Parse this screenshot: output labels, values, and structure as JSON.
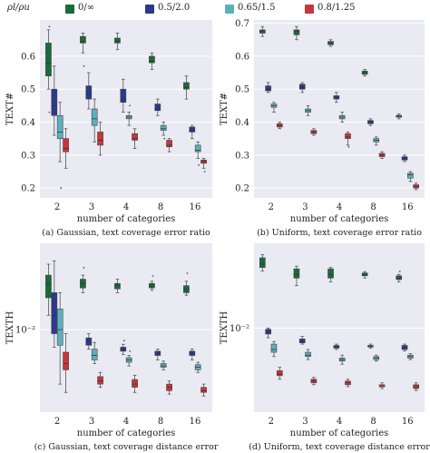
{
  "legend": {
    "title": "ρl/ρu",
    "items": [
      {
        "label": "0/∞",
        "color": "#1a6b3a"
      },
      {
        "label": "0.5/2.0",
        "color": "#2b3a8c"
      },
      {
        "label": "0.65/1.5",
        "color": "#5bb0bd"
      },
      {
        "label": "0.8/1.25",
        "color": "#c8353a"
      }
    ]
  },
  "chart_data": [
    {
      "type": "box",
      "caption": "(a) Gaussian, text coverage error ratio",
      "xlabel": "number of categories",
      "ylabel": "TEXT#",
      "categories": [
        "2",
        "3",
        "4",
        "8",
        "16"
      ],
      "yscale": "linear",
      "ylim": [
        0.17,
        0.71
      ],
      "yticks": [
        "0.2",
        "0.3",
        "0.4",
        "0.5",
        "0.6"
      ],
      "ytick_values": [
        0.2,
        0.3,
        0.4,
        0.5,
        0.6
      ],
      "series": [
        {
          "name": "0/∞",
          "boxes": [
            {
              "min": 0.5,
              "q1": 0.54,
              "med": 0.58,
              "q3": 0.64,
              "max": 0.68,
              "outliers": [
                0.69,
                0.43
              ]
            },
            {
              "min": 0.61,
              "q1": 0.64,
              "med": 0.645,
              "q3": 0.66,
              "max": 0.67,
              "outliers": [
                0.57
              ]
            },
            {
              "min": 0.62,
              "q1": 0.64,
              "med": 0.645,
              "q3": 0.655,
              "max": 0.67,
              "outliers": []
            },
            {
              "min": 0.56,
              "q1": 0.58,
              "med": 0.585,
              "q3": 0.6,
              "max": 0.61,
              "outliers": []
            },
            {
              "min": 0.47,
              "q1": 0.5,
              "med": 0.505,
              "q3": 0.52,
              "max": 0.54,
              "outliers": []
            }
          ]
        },
        {
          "name": "0.5/2.0",
          "boxes": [
            {
              "min": 0.36,
              "q1": 0.42,
              "med": 0.45,
              "q3": 0.5,
              "max": 0.57,
              "outliers": []
            },
            {
              "min": 0.44,
              "q1": 0.47,
              "med": 0.485,
              "q3": 0.51,
              "max": 0.55,
              "outliers": []
            },
            {
              "min": 0.43,
              "q1": 0.46,
              "med": 0.47,
              "q3": 0.5,
              "max": 0.53,
              "outliers": []
            },
            {
              "min": 0.42,
              "q1": 0.435,
              "med": 0.44,
              "q3": 0.455,
              "max": 0.47,
              "outliers": []
            },
            {
              "min": 0.35,
              "q1": 0.37,
              "med": 0.375,
              "q3": 0.385,
              "max": 0.39,
              "outliers": []
            }
          ]
        },
        {
          "name": "0.65/1.5",
          "boxes": [
            {
              "min": 0.28,
              "q1": 0.35,
              "med": 0.37,
              "q3": 0.42,
              "max": 0.46,
              "outliers": [
                0.2
              ]
            },
            {
              "min": 0.34,
              "q1": 0.39,
              "med": 0.41,
              "q3": 0.44,
              "max": 0.47,
              "outliers": []
            },
            {
              "min": 0.39,
              "q1": 0.41,
              "med": 0.415,
              "q3": 0.42,
              "max": 0.43,
              "outliers": [
                0.45
              ]
            },
            {
              "min": 0.36,
              "q1": 0.375,
              "med": 0.38,
              "q3": 0.39,
              "max": 0.4,
              "outliers": [
                0.35
              ]
            },
            {
              "min": 0.29,
              "q1": 0.31,
              "med": 0.315,
              "q3": 0.33,
              "max": 0.34,
              "outliers": [
                0.27
              ]
            }
          ]
        },
        {
          "name": "0.8/1.25",
          "boxes": [
            {
              "min": 0.26,
              "q1": 0.31,
              "med": 0.32,
              "q3": 0.35,
              "max": 0.38,
              "outliers": []
            },
            {
              "min": 0.3,
              "q1": 0.33,
              "med": 0.345,
              "q3": 0.37,
              "max": 0.4,
              "outliers": []
            },
            {
              "min": 0.32,
              "q1": 0.345,
              "med": 0.35,
              "q3": 0.365,
              "max": 0.38,
              "outliers": []
            },
            {
              "min": 0.31,
              "q1": 0.325,
              "med": 0.33,
              "q3": 0.345,
              "max": 0.35,
              "outliers": []
            },
            {
              "min": 0.26,
              "q1": 0.275,
              "med": 0.28,
              "q3": 0.285,
              "max": 0.29,
              "outliers": [
                0.25
              ]
            }
          ]
        }
      ]
    },
    {
      "type": "box",
      "caption": "(b) Uniform, text coverage error ratio",
      "xlabel": "number of categories",
      "ylabel": "TEXT#",
      "categories": [
        "2",
        "3",
        "4",
        "8",
        "16"
      ],
      "yscale": "linear",
      "ylim": [
        0.17,
        0.71
      ],
      "yticks": [
        "0.2",
        "0.3",
        "0.4",
        "0.5",
        "0.6",
        "0.7"
      ],
      "ytick_values": [
        0.2,
        0.3,
        0.4,
        0.5,
        0.6,
        0.7
      ],
      "series": [
        {
          "name": "0/∞",
          "boxes": [
            {
              "min": 0.66,
              "q1": 0.67,
              "med": 0.675,
              "q3": 0.68,
              "max": 0.69,
              "outliers": []
            },
            {
              "min": 0.65,
              "q1": 0.665,
              "med": 0.675,
              "q3": 0.68,
              "max": 0.69,
              "outliers": []
            },
            {
              "min": 0.63,
              "q1": 0.635,
              "med": 0.64,
              "q3": 0.645,
              "max": 0.65,
              "outliers": []
            },
            {
              "min": 0.54,
              "q1": 0.545,
              "med": 0.55,
              "q3": 0.555,
              "max": 0.56,
              "outliers": []
            },
            {
              "min": 0.41,
              "q1": 0.415,
              "med": 0.42,
              "q3": 0.42,
              "max": 0.425,
              "outliers": []
            }
          ]
        },
        {
          "name": "0.5/2.0",
          "boxes": [
            {
              "min": 0.49,
              "q1": 0.495,
              "med": 0.5,
              "q3": 0.51,
              "max": 0.52,
              "outliers": []
            },
            {
              "min": 0.49,
              "q1": 0.5,
              "med": 0.505,
              "q3": 0.515,
              "max": 0.52,
              "outliers": []
            },
            {
              "min": 0.46,
              "q1": 0.47,
              "med": 0.475,
              "q3": 0.48,
              "max": 0.49,
              "outliers": []
            },
            {
              "min": 0.39,
              "q1": 0.395,
              "med": 0.4,
              "q3": 0.405,
              "max": 0.41,
              "outliers": []
            },
            {
              "min": 0.28,
              "q1": 0.285,
              "med": 0.29,
              "q3": 0.295,
              "max": 0.3,
              "outliers": []
            }
          ]
        },
        {
          "name": "0.65/1.5",
          "boxes": [
            {
              "min": 0.43,
              "q1": 0.445,
              "med": 0.45,
              "q3": 0.455,
              "max": 0.46,
              "outliers": []
            },
            {
              "min": 0.42,
              "q1": 0.43,
              "med": 0.435,
              "q3": 0.44,
              "max": 0.45,
              "outliers": []
            },
            {
              "min": 0.4,
              "q1": 0.41,
              "med": 0.415,
              "q3": 0.42,
              "max": 0.43,
              "outliers": []
            },
            {
              "min": 0.33,
              "q1": 0.34,
              "med": 0.345,
              "q3": 0.35,
              "max": 0.355,
              "outliers": []
            },
            {
              "min": 0.22,
              "q1": 0.23,
              "med": 0.24,
              "q3": 0.245,
              "max": 0.25,
              "outliers": []
            }
          ]
        },
        {
          "name": "0.8/1.25",
          "boxes": [
            {
              "min": 0.38,
              "q1": 0.385,
              "med": 0.39,
              "q3": 0.395,
              "max": 0.4,
              "outliers": []
            },
            {
              "min": 0.36,
              "q1": 0.365,
              "med": 0.37,
              "q3": 0.375,
              "max": 0.38,
              "outliers": []
            },
            {
              "min": 0.33,
              "q1": 0.35,
              "med": 0.355,
              "q3": 0.365,
              "max": 0.37,
              "outliers": [
                0.325
              ]
            },
            {
              "min": 0.29,
              "q1": 0.295,
              "med": 0.3,
              "q3": 0.305,
              "max": 0.31,
              "outliers": []
            },
            {
              "min": 0.195,
              "q1": 0.2,
              "med": 0.205,
              "q3": 0.21,
              "max": 0.215,
              "outliers": []
            }
          ]
        }
      ]
    },
    {
      "type": "box",
      "caption": "(c) Gaussian, text coverage distance error",
      "xlabel": "number of categories",
      "ylabel": "TEXTH",
      "categories": [
        "2",
        "3",
        "4",
        "8",
        "16"
      ],
      "yscale": "log",
      "ylim": [
        0.0035,
        0.03
      ],
      "yticks": [
        "10⁻²"
      ],
      "ytick_values": [
        0.01
      ],
      "series": [
        {
          "name": "0/∞",
          "boxes": [
            {
              "min": 0.012,
              "q1": 0.015,
              "med": 0.018,
              "q3": 0.02,
              "max": 0.023,
              "outliers": []
            },
            {
              "min": 0.016,
              "q1": 0.017,
              "med": 0.018,
              "q3": 0.019,
              "max": 0.02,
              "outliers": [
                0.022
              ]
            },
            {
              "min": 0.016,
              "q1": 0.0168,
              "med": 0.0175,
              "q3": 0.018,
              "max": 0.019,
              "outliers": []
            },
            {
              "min": 0.0165,
              "q1": 0.017,
              "med": 0.0175,
              "q3": 0.018,
              "max": 0.0185,
              "outliers": [
                0.0198
              ]
            },
            {
              "min": 0.0155,
              "q1": 0.016,
              "med": 0.0168,
              "q3": 0.0175,
              "max": 0.0185,
              "outliers": [
                0.0205
              ]
            }
          ]
        },
        {
          "name": "0.5/2.0",
          "boxes": [
            {
              "min": 0.008,
              "q1": 0.0095,
              "med": 0.012,
              "q3": 0.016,
              "max": 0.024,
              "outliers": []
            },
            {
              "min": 0.0078,
              "q1": 0.0082,
              "med": 0.0086,
              "q3": 0.009,
              "max": 0.0095,
              "outliers": []
            },
            {
              "min": 0.0073,
              "q1": 0.0076,
              "med": 0.0078,
              "q3": 0.008,
              "max": 0.0083,
              "outliers": [
                0.0087
              ]
            },
            {
              "min": 0.0068,
              "q1": 0.0072,
              "med": 0.0074,
              "q3": 0.0076,
              "max": 0.0078,
              "outliers": []
            },
            {
              "min": 0.0068,
              "q1": 0.0072,
              "med": 0.0074,
              "q3": 0.0076,
              "max": 0.0078,
              "outliers": []
            }
          ]
        },
        {
          "name": "0.65/1.5",
          "boxes": [
            {
              "min": 0.005,
              "q1": 0.0082,
              "med": 0.01,
              "q3": 0.013,
              "max": 0.016,
              "outliers": []
            },
            {
              "min": 0.0065,
              "q1": 0.0068,
              "med": 0.0072,
              "q3": 0.0078,
              "max": 0.0085,
              "outliers": []
            },
            {
              "min": 0.0063,
              "q1": 0.0066,
              "med": 0.0068,
              "q3": 0.007,
              "max": 0.0072,
              "outliers": [
                0.0076
              ]
            },
            {
              "min": 0.006,
              "q1": 0.0062,
              "med": 0.0063,
              "q3": 0.0065,
              "max": 0.0067,
              "outliers": []
            },
            {
              "min": 0.0058,
              "q1": 0.006,
              "med": 0.0062,
              "q3": 0.0064,
              "max": 0.0066,
              "outliers": []
            }
          ]
        },
        {
          "name": "0.8/1.25",
          "boxes": [
            {
              "min": 0.0045,
              "q1": 0.006,
              "med": 0.0065,
              "q3": 0.0075,
              "max": 0.0095,
              "outliers": []
            },
            {
              "min": 0.0048,
              "q1": 0.005,
              "med": 0.0052,
              "q3": 0.0055,
              "max": 0.0058,
              "outliers": []
            },
            {
              "min": 0.0045,
              "q1": 0.0048,
              "med": 0.005,
              "q3": 0.0053,
              "max": 0.0056,
              "outliers": []
            },
            {
              "min": 0.0044,
              "q1": 0.0046,
              "med": 0.0048,
              "q3": 0.005,
              "max": 0.0052,
              "outliers": []
            },
            {
              "min": 0.0043,
              "q1": 0.0045,
              "med": 0.0046,
              "q3": 0.0048,
              "max": 0.005,
              "outliers": []
            }
          ]
        }
      ]
    },
    {
      "type": "box",
      "caption": "(d) Uniform, text coverage distance error",
      "xlabel": "number of categories",
      "ylabel": "TEXTH",
      "categories": [
        "2",
        "3",
        "4",
        "8",
        "16"
      ],
      "yscale": "log",
      "ylim": [
        0.0048,
        0.021
      ],
      "yticks": [
        "10⁻²"
      ],
      "ytick_values": [
        0.01
      ],
      "series": [
        {
          "name": "0/∞",
          "boxes": [
            {
              "min": 0.0165,
              "q1": 0.017,
              "med": 0.0175,
              "q3": 0.0185,
              "max": 0.019,
              "outliers": []
            },
            {
              "min": 0.0145,
              "q1": 0.0155,
              "med": 0.016,
              "q3": 0.0168,
              "max": 0.0172,
              "outliers": []
            },
            {
              "min": 0.015,
              "q1": 0.0155,
              "med": 0.016,
              "q3": 0.0168,
              "max": 0.017,
              "outliers": []
            },
            {
              "min": 0.0155,
              "q1": 0.0158,
              "med": 0.016,
              "q3": 0.0162,
              "max": 0.0164,
              "outliers": []
            },
            {
              "min": 0.015,
              "q1": 0.0153,
              "med": 0.0155,
              "q3": 0.0158,
              "max": 0.016,
              "outliers": [
                0.0164
              ]
            }
          ]
        },
        {
          "name": "0.5/2.0",
          "boxes": [
            {
              "min": 0.0092,
              "q1": 0.0095,
              "med": 0.0097,
              "q3": 0.0099,
              "max": 0.01,
              "outliers": []
            },
            {
              "min": 0.0087,
              "q1": 0.0088,
              "med": 0.0089,
              "q3": 0.0091,
              "max": 0.0093,
              "outliers": []
            },
            {
              "min": 0.0083,
              "q1": 0.0084,
              "med": 0.0085,
              "q3": 0.0086,
              "max": 0.0087,
              "outliers": []
            },
            {
              "min": 0.0084,
              "q1": 0.0085,
              "med": 0.0085,
              "q3": 0.0086,
              "max": 0.0087,
              "outliers": []
            },
            {
              "min": 0.0082,
              "q1": 0.0083,
              "med": 0.0084,
              "q3": 0.0086,
              "max": 0.0087,
              "outliers": []
            }
          ]
        },
        {
          "name": "0.65/1.5",
          "boxes": [
            {
              "min": 0.0078,
              "q1": 0.0081,
              "med": 0.0083,
              "q3": 0.0087,
              "max": 0.0089,
              "outliers": []
            },
            {
              "min": 0.0076,
              "q1": 0.0078,
              "med": 0.0079,
              "q3": 0.0081,
              "max": 0.0083,
              "outliers": []
            },
            {
              "min": 0.0073,
              "q1": 0.0075,
              "med": 0.0076,
              "q3": 0.0077,
              "max": 0.0079,
              "outliers": []
            },
            {
              "min": 0.0075,
              "q1": 0.0076,
              "med": 0.0077,
              "q3": 0.0078,
              "max": 0.0079,
              "outliers": []
            },
            {
              "min": 0.0076,
              "q1": 0.0077,
              "med": 0.0078,
              "q3": 0.0079,
              "max": 0.008,
              "outliers": []
            }
          ]
        },
        {
          "name": "0.8/1.25",
          "boxes": [
            {
              "min": 0.0064,
              "q1": 0.0066,
              "med": 0.0067,
              "q3": 0.0069,
              "max": 0.0071,
              "outliers": []
            },
            {
              "min": 0.0061,
              "q1": 0.0062,
              "med": 0.0063,
              "q3": 0.0064,
              "max": 0.0065,
              "outliers": []
            },
            {
              "min": 0.006,
              "q1": 0.0061,
              "med": 0.0062,
              "q3": 0.0063,
              "max": 0.0064,
              "outliers": []
            },
            {
              "min": 0.0059,
              "q1": 0.006,
              "med": 0.006,
              "q3": 0.0061,
              "max": 0.0062,
              "outliers": []
            },
            {
              "min": 0.0058,
              "q1": 0.0059,
              "med": 0.006,
              "q3": 0.0061,
              "max": 0.0062,
              "outliers": []
            }
          ]
        }
      ]
    }
  ]
}
